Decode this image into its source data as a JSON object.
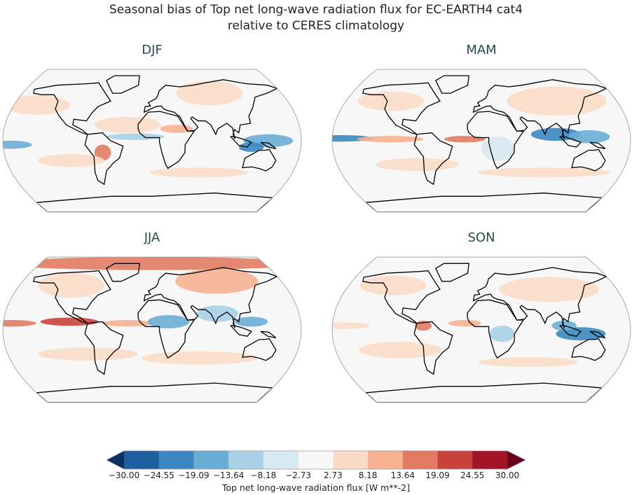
{
  "title": {
    "line1": "Seasonal bias of Top net long-wave radiation flux for EC-EARTH4 cat4",
    "line2": "relative to CERES climatology"
  },
  "panels": [
    {
      "label": "DJF"
    },
    {
      "label": "MAM"
    },
    {
      "label": "JJA"
    },
    {
      "label": "SON"
    }
  ],
  "colorbar": {
    "label": "Top net long-wave radiation flux [W m**-2]",
    "ticks": [
      "−30.00",
      "−24.55",
      "−19.09",
      "−13.64",
      "−8.18",
      "−2.73",
      "2.73",
      "8.18",
      "13.64",
      "19.09",
      "24.55",
      "30.00"
    ],
    "colors": [
      "#1f5f9f",
      "#3a87c0",
      "#6aadd5",
      "#a9d0e5",
      "#d7e8f1",
      "#f7f7f7",
      "#fadbc8",
      "#f5b191",
      "#e27b62",
      "#c7433c",
      "#a11428"
    ],
    "under_color": "#0a3060",
    "over_color": "#67001f"
  },
  "chart_data": {
    "type": "heatmap",
    "title": "Seasonal bias of Top net long-wave radiation flux for EC-EARTH4 cat4 relative to CERES climatology",
    "panels": [
      "DJF",
      "MAM",
      "JJA",
      "SON"
    ],
    "levels": [
      -30,
      -24.55,
      -19.09,
      -13.64,
      -8.18,
      -2.73,
      2.73,
      8.18,
      13.64,
      19.09,
      24.55,
      30
    ],
    "units": "W m**-2",
    "extend": "both"
  }
}
